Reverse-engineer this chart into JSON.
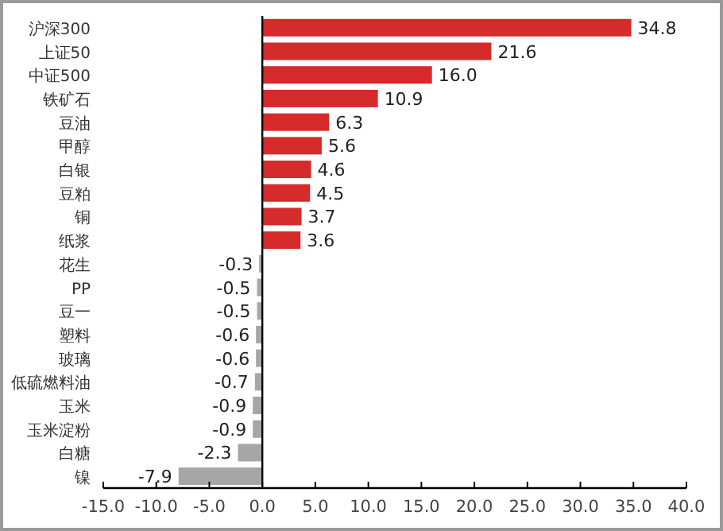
{
  "chart_data": {
    "type": "bar",
    "orientation": "horizontal",
    "categories": [
      "沪深300",
      "上证50",
      "中证500",
      "铁矿石",
      "豆油",
      "甲醇",
      "白银",
      "豆粕",
      "铜",
      "纸浆",
      "花生",
      "PP",
      "豆一",
      "塑料",
      "玻璃",
      "低硫燃料油",
      "玉米",
      "玉米淀粉",
      "白糖",
      "镍"
    ],
    "values": [
      34.8,
      21.6,
      16.0,
      10.9,
      6.3,
      5.6,
      4.6,
      4.5,
      3.7,
      3.6,
      -0.3,
      -0.5,
      -0.5,
      -0.6,
      -0.6,
      -0.7,
      -0.9,
      -0.9,
      -2.3,
      -7.9
    ],
    "colors": [
      "#d62b2b",
      "#d62b2b",
      "#d62b2b",
      "#d62b2b",
      "#d62b2b",
      "#d62b2b",
      "#d62b2b",
      "#d62b2b",
      "#d62b2b",
      "#d62b2b",
      "#a6a6a6",
      "#a6a6a6",
      "#a6a6a6",
      "#a6a6a6",
      "#a6a6a6",
      "#a6a6a6",
      "#a6a6a6",
      "#a6a6a6",
      "#a6a6a6",
      "#a6a6a6"
    ],
    "value_labels": [
      "34.8",
      "21.6",
      "16.0",
      "10.9",
      "6.3",
      "5.6",
      "4.6",
      "4.5",
      "3.7",
      "3.6",
      "-0.3",
      "-0.5",
      "-0.5",
      "-0.6",
      "-0.6",
      "-0.7",
      "-0.9",
      "-0.9",
      "-2.3",
      "-7.9"
    ],
    "xlim": [
      -15,
      40
    ],
    "xticks": [
      {
        "value": -15,
        "label": "-15.0"
      },
      {
        "value": -10,
        "label": "-10.0"
      },
      {
        "value": -5,
        "label": "-5.0"
      },
      {
        "value": 0,
        "label": "0.0"
      },
      {
        "value": 5,
        "label": "5.0"
      },
      {
        "value": 10,
        "label": "10.0"
      },
      {
        "value": 15,
        "label": "15.0"
      },
      {
        "value": 20,
        "label": "20.0"
      },
      {
        "value": 25,
        "label": "25.0"
      },
      {
        "value": 30,
        "label": "30.0"
      },
      {
        "value": 35,
        "label": "35.0"
      },
      {
        "value": 40,
        "label": "40.0"
      }
    ],
    "tick_labels": true
  }
}
